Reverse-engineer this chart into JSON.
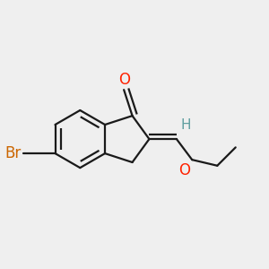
{
  "background_color": "#efefef",
  "bond_color": "#1a1a1a",
  "bond_lw": 1.6,
  "atoms": {
    "O_ketone": {
      "symbol": "O",
      "color": "#ff2200",
      "fontsize": 12
    },
    "Br": {
      "symbol": "Br",
      "color": "#cc6600",
      "fontsize": 12
    },
    "O_ethoxy": {
      "symbol": "O",
      "color": "#ff2200",
      "fontsize": 12
    },
    "H": {
      "symbol": "H",
      "color": "#5f9ea0",
      "fontsize": 11
    }
  },
  "fig_width": 3.0,
  "fig_height": 3.0,
  "dpi": 100
}
